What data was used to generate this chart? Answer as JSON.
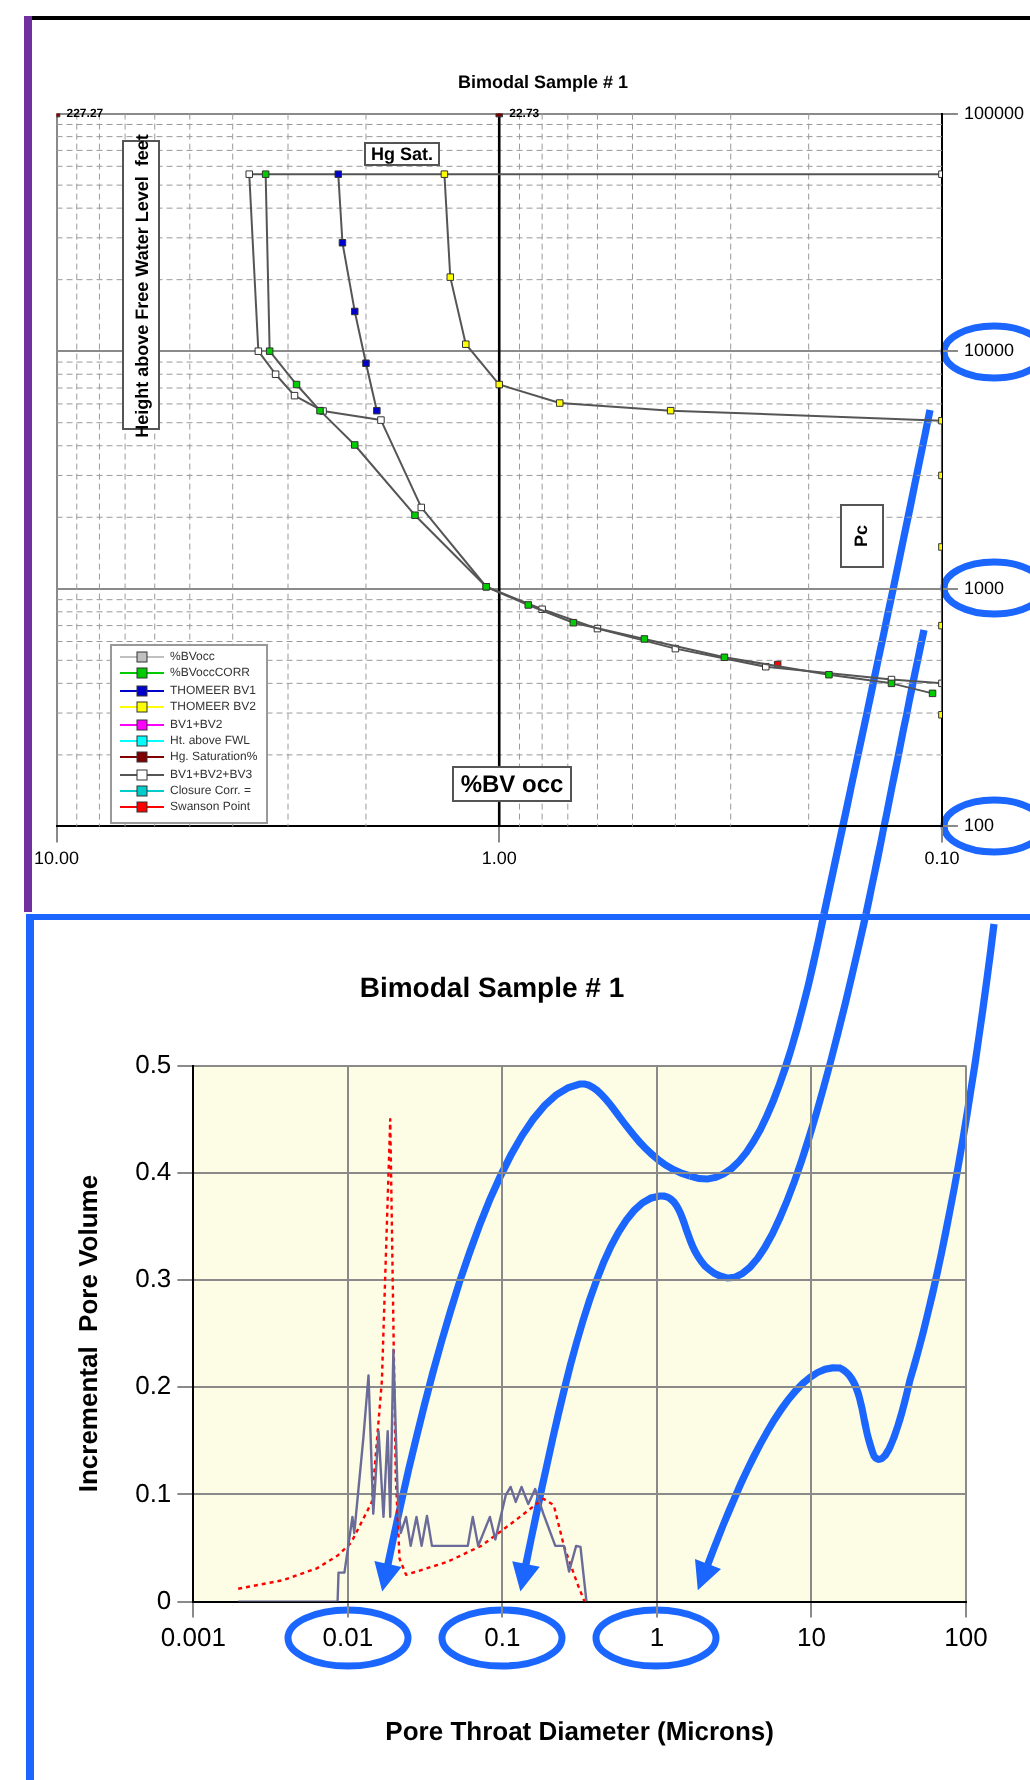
{
  "chart_data": [
    {
      "type": "line",
      "title": "Bimodal Sample # 1",
      "xlabel": "%BV occ",
      "ylabel": "Height above Free Water Level  feet",
      "log": "xy",
      "xlim": [
        10,
        0.1
      ],
      "xticks": [
        {
          "value": 10,
          "label": "10.00"
        },
        {
          "value": 1,
          "label": "1.00"
        },
        {
          "value": 0.1,
          "label": "0.10"
        }
      ],
      "ylim": [
        100,
        100000
      ],
      "yticks": [
        100,
        1000,
        10000,
        100000
      ],
      "grid": true,
      "legend": "bottom left",
      "marker": "square",
      "annotations": [
        "Hg Sat.",
        "Pc",
        {
          "text": "227.27",
          "x": 10,
          "y": 100000
        },
        {
          "text": "22.73",
          "x": 1,
          "y": 100000
        }
      ],
      "ref_lines": [
        {
          "axis": "x",
          "value": 1,
          "color": "#000000"
        }
      ],
      "series": [
        {
          "name": "%BVocc",
          "color": "#c0c0c0"
        },
        {
          "name": "%BVoccCORR",
          "color": "#00cc00",
          "x": [
            3.37,
            3.3,
            2.87,
            2.54,
            2.12,
            1.55,
            1.07,
            0.86,
            0.68,
            0.47,
            0.31,
            0.18,
            0.13,
            0.105
          ],
          "values": [
            55600,
            10000,
            7240,
            5620,
            4030,
            2040,
            1020,
            855,
            720,
            615,
            515,
            435,
            400,
            363
          ]
        },
        {
          "name": "THOMEER BV1",
          "color": "#0000cc",
          "x": [
            2.31,
            2.26,
            2.12,
            2.0,
            1.89
          ],
          "values": [
            55600,
            28600,
            14700,
            8900,
            5620
          ]
        },
        {
          "name": "THOMEER BV2",
          "color": "#ffff00",
          "x": [
            1.33,
            1.29,
            1.19,
            1.0,
            0.73,
            0.41,
            0.1,
            0.1,
            0.1,
            0.1,
            0.1
          ],
          "values": [
            55600,
            20500,
            10700,
            7240,
            6050,
            5620,
            5100,
            3000,
            1500,
            700,
            295
          ]
        },
        {
          "name": "BV1+BV2",
          "color": "#ff00ff"
        },
        {
          "name": "Ht. above FWL",
          "color": "#00ffff"
        },
        {
          "name": "Hg. Saturation%",
          "color": "#800000",
          "type": "scatter",
          "x": [
            10,
            1
          ],
          "values": [
            100000,
            100000
          ]
        },
        {
          "name": "BV1+BV2+BV3",
          "color": "#ffffff",
          "x": [
            0.1,
            3.67,
            3.5,
            3.2,
            2.9,
            2.5,
            1.85,
            1.5,
            1.07,
            0.8,
            0.6,
            0.4,
            0.25,
            0.13,
            0.1
          ],
          "values": [
            55600,
            55600,
            10000,
            8000,
            6500,
            5600,
            5130,
            2200,
            1020,
            820,
            680,
            560,
            470,
            415,
            400
          ]
        },
        {
          "name": "Closure Corr. =",
          "color": "#00cccc",
          "type": "scatter"
        },
        {
          "name": "Swanson Point",
          "color": "#ff0000",
          "type": "scatter",
          "x": [
            0.235
          ],
          "values": [
            480
          ]
        }
      ]
    },
    {
      "type": "line",
      "title": "Bimodal Sample # 1",
      "xlabel": "Pore Throat Diameter (Microns)",
      "ylabel": "Incremental  Pore Volume",
      "log": "x",
      "xlim": [
        0.001,
        100
      ],
      "xticks": [
        0.001,
        0.01,
        0.1,
        1,
        10,
        100
      ],
      "ylim": [
        0,
        0.5
      ],
      "yticks": [
        0,
        0.1,
        0.2,
        0.3,
        0.4,
        0.5
      ],
      "grid": true,
      "marker": "none",
      "series": [
        {
          "color": "#6b6b9a",
          "line_style": "solid",
          "x": [
            0.00195,
            0.00858,
            0.0087,
            0.0095,
            0.0107,
            0.011,
            0.0126,
            0.0136,
            0.0146,
            0.0158,
            0.017,
            0.0181,
            0.0188,
            0.0197,
            0.021,
            0.022,
            0.0238,
            0.0255,
            0.0278,
            0.03,
            0.0325,
            0.035,
            0.0597,
            0.0643,
            0.0697,
            0.083,
            0.09,
            0.105,
            0.113,
            0.122,
            0.133,
            0.147,
            0.163,
            0.184,
            0.22,
            0.25,
            0.27,
            0.3,
            0.32,
            0.35
          ],
          "values": [
            0,
            0,
            0.027,
            0.027,
            0.079,
            0.064,
            0.153,
            0.211,
            0.082,
            0.159,
            0.079,
            0.159,
            0.079,
            0.235,
            0.099,
            0.064,
            0.079,
            0.052,
            0.079,
            0.052,
            0.08,
            0.052,
            0.052,
            0.079,
            0.052,
            0.079,
            0.058,
            0.099,
            0.107,
            0.093,
            0.107,
            0.091,
            0.105,
            0.082,
            0.052,
            0.052,
            0.028,
            0.052,
            0.051,
            0
          ]
        },
        {
          "color": "#ff0000",
          "line_style": "dotted",
          "x": [
            0.00195,
            0.0038,
            0.0063,
            0.0086,
            0.0105,
            0.0143,
            0.0166,
            0.0188,
            0.0204,
            0.0216,
            0.0238,
            0.0439,
            0.073,
            0.122,
            0.184,
            0.215,
            0.25,
            0.305,
            0.34
          ],
          "values": [
            0.012,
            0.02,
            0.031,
            0.043,
            0.055,
            0.093,
            0.206,
            0.45,
            0.117,
            0.04,
            0.025,
            0.037,
            0.052,
            0.076,
            0.096,
            0.09,
            0.052,
            0.017,
            0
          ]
        }
      ]
    }
  ]
}
